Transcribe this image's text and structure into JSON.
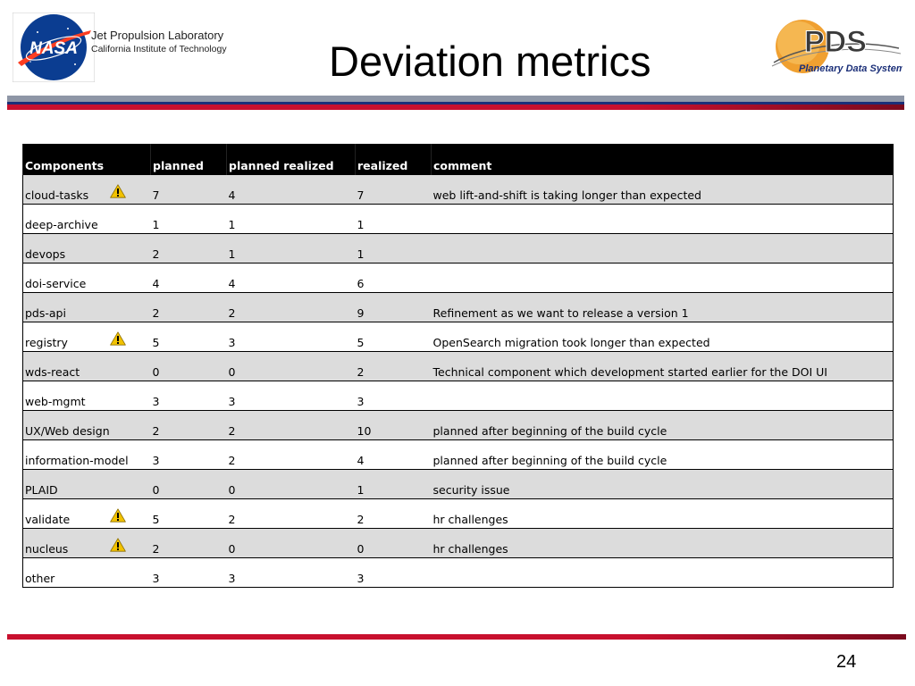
{
  "header": {
    "org_line1": "Jet Propulsion Laboratory",
    "org_line2": "California Institute of Technology",
    "nasa_logo_text": "NASA",
    "pds_logo_text": "PDS",
    "pds_logo_subtitle": "Planetary Data System",
    "title": "Deviation metrics"
  },
  "table": {
    "columns": [
      "Components",
      "planned",
      "planned realized",
      "realized",
      "comment"
    ],
    "rows": [
      {
        "component": "cloud-tasks",
        "warning": true,
        "planned": "7",
        "planned_realized": "4",
        "realized": "7",
        "comment": "web lift-and-shift is taking longer than expected"
      },
      {
        "component": "deep-archive",
        "warning": false,
        "planned": "1",
        "planned_realized": "1",
        "realized": "1",
        "comment": ""
      },
      {
        "component": "devops",
        "warning": false,
        "planned": "2",
        "planned_realized": "1",
        "realized": "1",
        "comment": ""
      },
      {
        "component": "doi-service",
        "warning": false,
        "planned": "4",
        "planned_realized": "4",
        "realized": "6",
        "comment": ""
      },
      {
        "component": "pds-api",
        "warning": false,
        "planned": "2",
        "planned_realized": "2",
        "realized": "9",
        "comment": "Refinement as we want to release a version 1"
      },
      {
        "component": "registry",
        "warning": true,
        "planned": "5",
        "planned_realized": "3",
        "realized": "5",
        "comment": "OpenSearch migration took longer than expected"
      },
      {
        "component": "wds-react",
        "warning": false,
        "planned": "0",
        "planned_realized": "0",
        "realized": "2",
        "comment": "Technical component which development started earlier for the DOI UI"
      },
      {
        "component": "web-mgmt",
        "warning": false,
        "planned": "3",
        "planned_realized": "3",
        "realized": "3",
        "comment": ""
      },
      {
        "component": "UX/Web design",
        "warning": false,
        "planned": "2",
        "planned_realized": "2",
        "realized": "10",
        "comment": "planned after beginning of the build cycle"
      },
      {
        "component": "information-model",
        "warning": false,
        "planned": "3",
        "planned_realized": "2",
        "realized": "4",
        "comment": "planned after beginning of the build cycle"
      },
      {
        "component": "PLAID",
        "warning": false,
        "planned": "0",
        "planned_realized": "0",
        "realized": "1",
        "comment": "security issue"
      },
      {
        "component": "validate",
        "warning": true,
        "planned": "5",
        "planned_realized": "2",
        "realized": "2",
        "comment": "hr challenges"
      },
      {
        "component": "nucleus",
        "warning": true,
        "planned": "2",
        "planned_realized": "0",
        "realized": "0",
        "comment": "hr challenges"
      },
      {
        "component": "other",
        "warning": false,
        "planned": "3",
        "planned_realized": "3",
        "realized": "3",
        "comment": ""
      }
    ]
  },
  "footer": {
    "page_number": "24"
  },
  "colors": {
    "header_bg": "#000000",
    "row_alt": "#dcdcdc",
    "accent_red": "#c8102e",
    "accent_blue": "#1b2f78",
    "warning_yellow": "#f2c200"
  },
  "icons": {
    "warning": "warning-icon",
    "nasa": "nasa-logo",
    "pds": "pds-logo"
  }
}
